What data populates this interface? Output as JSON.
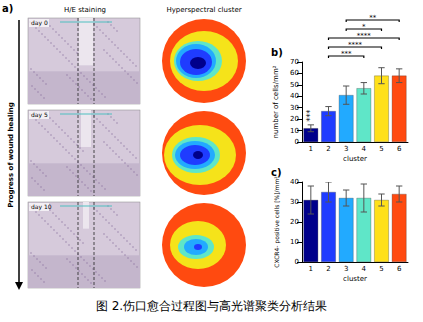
{
  "caption": "图 2.伤口愈合过程图与高光谱聚类分析结果",
  "panel_a": {
    "label": "a)",
    "columns": [
      "H/E staining",
      "Hyperspectral cluster"
    ],
    "rows": [
      "day 0",
      "day 5",
      "day 10"
    ],
    "arrow_label": "Progress of wound healing"
  },
  "chart_data": [
    {
      "type": "bar",
      "label": "b)",
      "x_label": "cluster",
      "y_label": "number of cells/mm²",
      "categories": [
        "1",
        "2",
        "3",
        "4",
        "5",
        "6"
      ],
      "values": [
        12,
        27,
        41,
        47,
        58,
        58
      ],
      "errors": [
        3,
        4,
        8,
        5,
        7,
        6
      ],
      "colors": [
        "#00008b",
        "#1f3cff",
        "#22aaff",
        "#5fe6c8",
        "#ffe01a",
        "#ff4a10"
      ],
      "ylim": [
        0,
        70
      ],
      "yticks": [
        0,
        10,
        20,
        30,
        40,
        50,
        60,
        70
      ],
      "grid": false,
      "annotations": [
        {
          "category": "1",
          "text": "***"
        }
      ],
      "significance": [
        {
          "from": "2",
          "to": "4",
          "label": "***"
        },
        {
          "from": "2",
          "to": "5",
          "label": "****"
        },
        {
          "from": "2",
          "to": "6",
          "label": "****"
        },
        {
          "from": "3",
          "to": "5",
          "label": "*"
        },
        {
          "from": "3",
          "to": "6",
          "label": "**"
        }
      ]
    },
    {
      "type": "bar",
      "label": "c)",
      "x_label": "cluster",
      "y_label": "CXCR4- positive cells [%]/mm²",
      "categories": [
        "1",
        "2",
        "3",
        "4",
        "5",
        "6"
      ],
      "values": [
        31,
        35,
        32,
        32,
        31,
        34
      ],
      "errors": [
        7,
        5,
        4,
        7,
        3,
        4
      ],
      "colors": [
        "#00008b",
        "#1f3cff",
        "#22aaff",
        "#5fe6c8",
        "#ffe01a",
        "#ff4a10"
      ],
      "ylim": [
        0,
        40
      ],
      "yticks": [
        0,
        10,
        20,
        30,
        40
      ],
      "grid": false
    }
  ]
}
